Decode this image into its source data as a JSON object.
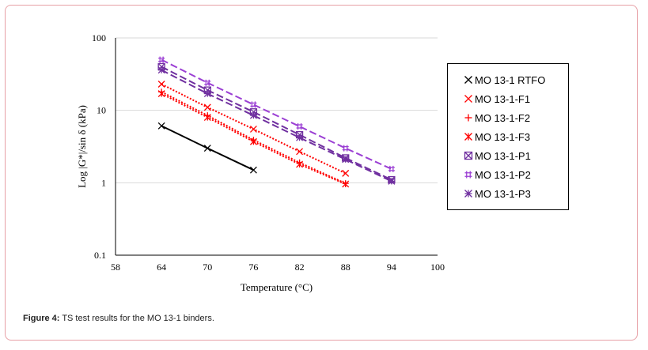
{
  "caption": {
    "label": "Figure 4:",
    "text": "TS test results for the MO 13-1 binders."
  },
  "chart_data": {
    "type": "line",
    "title": "",
    "xlabel": "Temperature (°C)",
    "ylabel": "Log |G*|/sin δ (kPa)",
    "xlim": [
      58,
      100
    ],
    "ylim": [
      0.1,
      100
    ],
    "yscale": "log",
    "x_ticks": [
      "58",
      "64",
      "70",
      "76",
      "82",
      "88",
      "94",
      "100"
    ],
    "y_ticks": [
      "0.1",
      "1",
      "10",
      "100"
    ],
    "grid": "horizontal",
    "legend_position": "right",
    "series": [
      {
        "name": "MO 13-1 RTFO",
        "marker": "x",
        "color": "#000000",
        "line": "solid",
        "x": [
          64,
          70,
          76
        ],
        "y": [
          6.1,
          3.0,
          1.5
        ]
      },
      {
        "name": "MO 13-1-F1",
        "marker": "x",
        "color": "#ff0000",
        "line": "dotted",
        "x": [
          64,
          70,
          76,
          82,
          88
        ],
        "y": [
          23,
          11,
          5.5,
          2.7,
          1.35
        ]
      },
      {
        "name": "MO 13-1-F2",
        "marker": "plus",
        "color": "#ff0000",
        "line": "dotted",
        "x": [
          64,
          70,
          76,
          82,
          88
        ],
        "y": [
          18,
          8.5,
          3.9,
          1.9,
          0.98
        ]
      },
      {
        "name": "MO 13-1-F3",
        "marker": "star",
        "color": "#ff0000",
        "line": "dotted",
        "x": [
          64,
          70,
          76,
          82,
          88
        ],
        "y": [
          17,
          8.0,
          3.7,
          1.8,
          0.96
        ]
      },
      {
        "name": "MO 13-1-P1",
        "marker": "xbox",
        "color": "#7030a0",
        "line": "dashed",
        "x": [
          64,
          70,
          76,
          82,
          88,
          94
        ],
        "y": [
          40,
          19,
          9.5,
          4.6,
          2.2,
          1.1
        ]
      },
      {
        "name": "MO 13-1-P2",
        "marker": "hash",
        "color": "#9b3fd4",
        "line": "dashed",
        "x": [
          64,
          70,
          76,
          82,
          88,
          94
        ],
        "y": [
          50,
          24,
          12,
          6.0,
          3.0,
          1.55
        ]
      },
      {
        "name": "MO 13-1-P3",
        "marker": "asterisk",
        "color": "#7030a0",
        "line": "dashed",
        "x": [
          64,
          70,
          76,
          82,
          88,
          94
        ],
        "y": [
          36,
          17,
          8.5,
          4.2,
          2.1,
          1.05
        ]
      }
    ]
  }
}
